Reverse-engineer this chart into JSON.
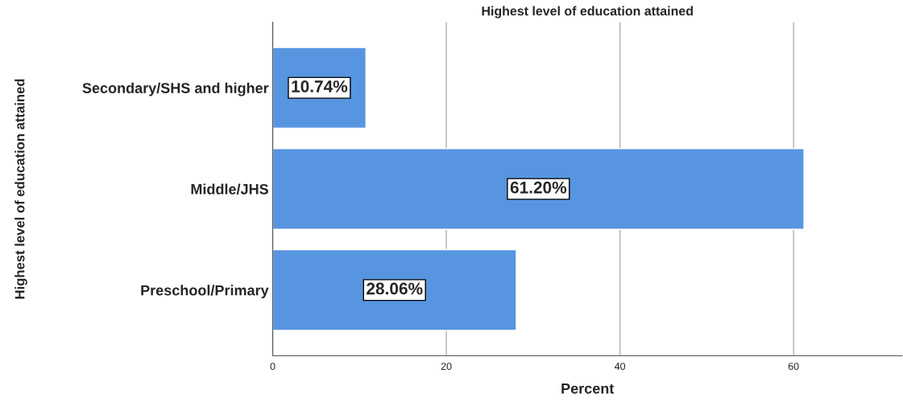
{
  "chart_data": {
    "type": "bar",
    "orientation": "horizontal",
    "title": "Highest level of education attained",
    "xlabel": "Percent",
    "ylabel": "Highest level of education attained",
    "categories": [
      "Secondary/SHS and higher",
      "Middle/JHS",
      "Preschool/Primary"
    ],
    "values": [
      10.74,
      61.2,
      28.06
    ],
    "color": "#5895e0",
    "value_labels": [
      "10.74%",
      "61.20%",
      "28.06%"
    ],
    "xlim": [
      0,
      72.5
    ],
    "xticks": [
      0,
      20,
      40,
      60
    ],
    "grid": "x",
    "legend": false
  }
}
